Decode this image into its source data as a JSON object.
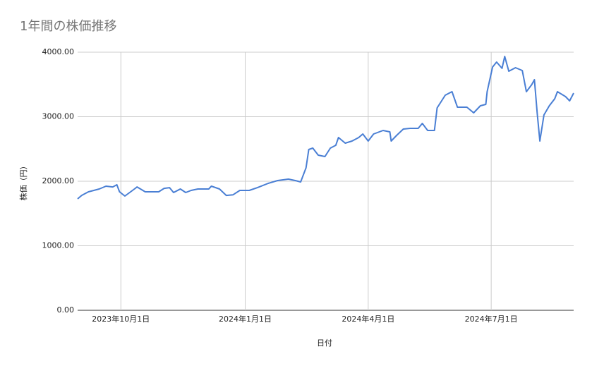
{
  "chart_data": {
    "type": "line",
    "title": "1年間の株価推移",
    "xlabel": "日付",
    "ylabel": "株価（円）",
    "color": "#4a7fd4",
    "grid": true,
    "x": [
      "2023-08-30",
      "2023-09-02",
      "2023-09-07",
      "2023-09-15",
      "2023-09-20",
      "2023-09-25",
      "2023-09-28",
      "2023-09-30",
      "2023-10-04",
      "2023-10-11",
      "2023-10-13",
      "2023-10-19",
      "2023-10-24",
      "2023-10-29",
      "2023-11-02",
      "2023-11-06",
      "2023-11-09",
      "2023-11-14",
      "2023-11-18",
      "2023-11-22",
      "2023-11-27",
      "2023-12-05",
      "2023-12-07",
      "2023-12-13",
      "2023-12-18",
      "2023-12-23",
      "2023-12-28",
      "2024-01-04",
      "2024-01-10",
      "2024-01-18",
      "2024-01-25",
      "2024-02-02",
      "2024-02-07",
      "2024-02-11",
      "2024-02-15",
      "2024-02-17",
      "2024-02-20",
      "2024-02-24",
      "2024-02-29",
      "2024-03-04",
      "2024-03-08",
      "2024-03-10",
      "2024-03-15",
      "2024-03-20",
      "2024-03-25",
      "2024-03-28",
      "2024-04-01",
      "2024-04-05",
      "2024-04-12",
      "2024-04-17",
      "2024-04-18",
      "2024-04-22",
      "2024-04-27",
      "2024-05-02",
      "2024-05-08",
      "2024-05-11",
      "2024-05-15",
      "2024-05-20",
      "2024-05-22",
      "2024-05-28",
      "2024-06-02",
      "2024-06-06",
      "2024-06-13",
      "2024-06-18",
      "2024-06-23",
      "2024-06-27",
      "2024-06-28",
      "2024-07-02",
      "2024-07-05",
      "2024-07-09",
      "2024-07-11",
      "2024-07-14",
      "2024-07-19",
      "2024-07-24",
      "2024-07-27",
      "2024-07-31",
      "2024-08-02",
      "2024-08-04",
      "2024-08-06",
      "2024-08-09",
      "2024-08-13",
      "2024-08-17",
      "2024-08-19",
      "2024-08-25",
      "2024-08-28",
      "2024-08-31"
    ],
    "values": [
      1727,
      1780,
      1836,
      1880,
      1923,
      1912,
      1945,
      1836,
      1770,
      1880,
      1912,
      1836,
      1836,
      1836,
      1890,
      1900,
      1825,
      1880,
      1825,
      1858,
      1880,
      1880,
      1923,
      1880,
      1780,
      1790,
      1858,
      1858,
      1900,
      1967,
      2011,
      2033,
      2011,
      1989,
      2208,
      2492,
      2514,
      2404,
      2383,
      2514,
      2557,
      2678,
      2590,
      2623,
      2678,
      2732,
      2623,
      2732,
      2787,
      2765,
      2623,
      2710,
      2809,
      2820,
      2820,
      2896,
      2787,
      2787,
      3137,
      3333,
      3388,
      3148,
      3148,
      3060,
      3169,
      3191,
      3388,
      3770,
      3847,
      3750,
      3934,
      3705,
      3760,
      3716,
      3388,
      3497,
      3574,
      3060,
      2623,
      3027,
      3169,
      3279,
      3388,
      3311,
      3246,
      3366
    ],
    "xlim": [
      "2023-08-30",
      "2024-08-31"
    ],
    "xticks": [
      {
        "value": "2023-10-01",
        "label": "2023年10月1日"
      },
      {
        "value": "2024-01-01",
        "label": "2024年1月1日"
      },
      {
        "value": "2024-04-01",
        "label": "2024年4月1日"
      },
      {
        "value": "2024-07-01",
        "label": "2024年7月1日"
      }
    ],
    "ylim": [
      0,
      4000
    ],
    "yticks": [
      {
        "value": 0,
        "label": "0.00"
      },
      {
        "value": 1000,
        "label": "1000.00"
      },
      {
        "value": 2000,
        "label": "2000.00"
      },
      {
        "value": 3000,
        "label": "3000.00"
      },
      {
        "value": 4000,
        "label": "4000.00"
      }
    ]
  }
}
